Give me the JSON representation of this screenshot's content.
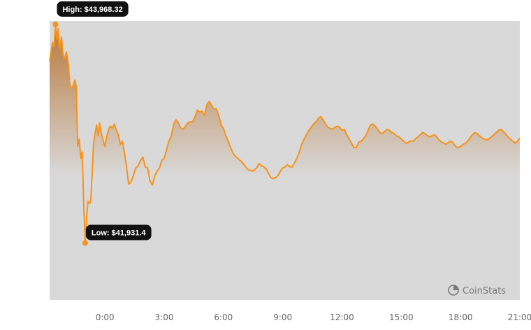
{
  "chart_data": {
    "type": "area",
    "title": "",
    "xlabel": "",
    "ylabel": "",
    "x_tick_labels": [
      "0:00",
      "3:00",
      "6:00",
      "9:00",
      "12:00",
      "15:00",
      "18:00",
      "21:00"
    ],
    "x_tick_hours": [
      0,
      3,
      6,
      9,
      12,
      15,
      18,
      21
    ],
    "x_range_hours": [
      -2.8,
      21.0
    ],
    "ylim": [
      41400,
      44000
    ],
    "series": [
      {
        "name": "",
        "points": [
          [
            -2.8,
            43630
          ],
          [
            -2.72,
            43720
          ],
          [
            -2.65,
            43800
          ],
          [
            -2.58,
            43760
          ],
          [
            -2.5,
            43968.32
          ],
          [
            -2.43,
            43830
          ],
          [
            -2.37,
            43930
          ],
          [
            -2.3,
            43740
          ],
          [
            -2.2,
            43850
          ],
          [
            -2.12,
            43690
          ],
          [
            -2.05,
            43640
          ],
          [
            -1.95,
            43710
          ],
          [
            -1.85,
            43600
          ],
          [
            -1.78,
            43420
          ],
          [
            -1.7,
            43370
          ],
          [
            -1.6,
            43400
          ],
          [
            -1.52,
            43450
          ],
          [
            -1.45,
            43390
          ],
          [
            -1.38,
            42830
          ],
          [
            -1.3,
            42900
          ],
          [
            -1.22,
            42720
          ],
          [
            -1.15,
            42780
          ],
          [
            -1.08,
            42330
          ],
          [
            -1.0,
            41931.4
          ],
          [
            -0.93,
            42150
          ],
          [
            -0.86,
            42320
          ],
          [
            -0.78,
            42300
          ],
          [
            -0.72,
            42310
          ],
          [
            -0.64,
            42600
          ],
          [
            -0.58,
            42850
          ],
          [
            -0.5,
            42950
          ],
          [
            -0.42,
            43030
          ],
          [
            -0.34,
            42930
          ],
          [
            -0.27,
            43050
          ],
          [
            -0.2,
            42970
          ],
          [
            -0.1,
            42890
          ],
          [
            0.0,
            42830
          ],
          [
            0.08,
            42910
          ],
          [
            0.18,
            42990
          ],
          [
            0.28,
            43020
          ],
          [
            0.38,
            43000
          ],
          [
            0.48,
            43040
          ],
          [
            0.58,
            42980
          ],
          [
            0.68,
            42940
          ],
          [
            0.78,
            42850
          ],
          [
            0.88,
            42880
          ],
          [
            0.98,
            42780
          ],
          [
            1.08,
            42660
          ],
          [
            1.2,
            42480
          ],
          [
            1.32,
            42500
          ],
          [
            1.44,
            42560
          ],
          [
            1.56,
            42630
          ],
          [
            1.68,
            42650
          ],
          [
            1.8,
            42700
          ],
          [
            1.92,
            42730
          ],
          [
            2.04,
            42640
          ],
          [
            2.16,
            42630
          ],
          [
            2.28,
            42510
          ],
          [
            2.4,
            42470
          ],
          [
            2.52,
            42550
          ],
          [
            2.64,
            42600
          ],
          [
            2.76,
            42630
          ],
          [
            2.88,
            42700
          ],
          [
            3.0,
            42720
          ],
          [
            3.12,
            42800
          ],
          [
            3.24,
            42880
          ],
          [
            3.36,
            42930
          ],
          [
            3.48,
            43040
          ],
          [
            3.6,
            43080
          ],
          [
            3.72,
            43050
          ],
          [
            3.84,
            43000
          ],
          [
            3.96,
            42990
          ],
          [
            4.08,
            43020
          ],
          [
            4.2,
            43050
          ],
          [
            4.32,
            43060
          ],
          [
            4.44,
            43060
          ],
          [
            4.56,
            43110
          ],
          [
            4.68,
            43170
          ],
          [
            4.8,
            43150
          ],
          [
            4.92,
            43160
          ],
          [
            5.04,
            43120
          ],
          [
            5.16,
            43220
          ],
          [
            5.28,
            43250
          ],
          [
            5.4,
            43210
          ],
          [
            5.52,
            43180
          ],
          [
            5.64,
            43180
          ],
          [
            5.76,
            43120
          ],
          [
            5.88,
            43030
          ],
          [
            6.0,
            43000
          ],
          [
            6.12,
            42930
          ],
          [
            6.24,
            42880
          ],
          [
            6.36,
            42820
          ],
          [
            6.48,
            42770
          ],
          [
            6.6,
            42740
          ],
          [
            6.72,
            42720
          ],
          [
            6.84,
            42700
          ],
          [
            6.96,
            42680
          ],
          [
            7.08,
            42650
          ],
          [
            7.2,
            42620
          ],
          [
            7.32,
            42610
          ],
          [
            7.44,
            42600
          ],
          [
            7.56,
            42610
          ],
          [
            7.68,
            42630
          ],
          [
            7.8,
            42670
          ],
          [
            7.92,
            42650
          ],
          [
            8.04,
            42640
          ],
          [
            8.16,
            42620
          ],
          [
            8.28,
            42580
          ],
          [
            8.4,
            42540
          ],
          [
            8.52,
            42530
          ],
          [
            8.64,
            42540
          ],
          [
            8.76,
            42560
          ],
          [
            8.88,
            42600
          ],
          [
            9.0,
            42630
          ],
          [
            9.12,
            42640
          ],
          [
            9.24,
            42660
          ],
          [
            9.36,
            42640
          ],
          [
            9.48,
            42640
          ],
          [
            9.6,
            42680
          ],
          [
            9.72,
            42720
          ],
          [
            9.84,
            42780
          ],
          [
            9.96,
            42850
          ],
          [
            10.08,
            42900
          ],
          [
            10.2,
            42940
          ],
          [
            10.32,
            42980
          ],
          [
            10.44,
            43010
          ],
          [
            10.56,
            43040
          ],
          [
            10.68,
            43060
          ],
          [
            10.8,
            43090
          ],
          [
            10.92,
            43110
          ],
          [
            11.04,
            43080
          ],
          [
            11.16,
            43040
          ],
          [
            11.28,
            43010
          ],
          [
            11.4,
            43000
          ],
          [
            11.52,
            42990
          ],
          [
            11.64,
            43010
          ],
          [
            11.76,
            43020
          ],
          [
            11.88,
            43010
          ],
          [
            12.0,
            42980
          ],
          [
            12.12,
            42990
          ],
          [
            12.24,
            42940
          ],
          [
            12.36,
            42900
          ],
          [
            12.48,
            42860
          ],
          [
            12.6,
            42820
          ],
          [
            12.72,
            42820
          ],
          [
            12.84,
            42870
          ],
          [
            12.96,
            42880
          ],
          [
            13.08,
            42900
          ],
          [
            13.2,
            42930
          ],
          [
            13.32,
            42980
          ],
          [
            13.44,
            43030
          ],
          [
            13.56,
            43040
          ],
          [
            13.68,
            43020
          ],
          [
            13.8,
            42990
          ],
          [
            13.92,
            42960
          ],
          [
            14.04,
            42950
          ],
          [
            14.16,
            42970
          ],
          [
            14.28,
            42990
          ],
          [
            14.4,
            42980
          ],
          [
            14.52,
            42960
          ],
          [
            14.64,
            42950
          ],
          [
            14.76,
            42930
          ],
          [
            14.88,
            42920
          ],
          [
            15.0,
            42900
          ],
          [
            15.12,
            42880
          ],
          [
            15.24,
            42860
          ],
          [
            15.36,
            42870
          ],
          [
            15.48,
            42880
          ],
          [
            15.6,
            42880
          ],
          [
            15.72,
            42900
          ],
          [
            15.84,
            42920
          ],
          [
            15.96,
            42940
          ],
          [
            16.08,
            42960
          ],
          [
            16.2,
            42950
          ],
          [
            16.32,
            42930
          ],
          [
            16.44,
            42920
          ],
          [
            16.56,
            42930
          ],
          [
            16.68,
            42940
          ],
          [
            16.8,
            42920
          ],
          [
            16.92,
            42890
          ],
          [
            17.04,
            42870
          ],
          [
            17.16,
            42860
          ],
          [
            17.28,
            42850
          ],
          [
            17.4,
            42870
          ],
          [
            17.52,
            42880
          ],
          [
            17.64,
            42860
          ],
          [
            17.76,
            42830
          ],
          [
            17.88,
            42820
          ],
          [
            18.0,
            42830
          ],
          [
            18.12,
            42850
          ],
          [
            18.24,
            42860
          ],
          [
            18.36,
            42880
          ],
          [
            18.48,
            42910
          ],
          [
            18.6,
            42940
          ],
          [
            18.72,
            42960
          ],
          [
            18.84,
            42950
          ],
          [
            18.96,
            42930
          ],
          [
            19.08,
            42910
          ],
          [
            19.2,
            42900
          ],
          [
            19.32,
            42890
          ],
          [
            19.44,
            42900
          ],
          [
            19.56,
            42920
          ],
          [
            19.68,
            42940
          ],
          [
            19.8,
            42960
          ],
          [
            19.92,
            42980
          ],
          [
            20.04,
            42990
          ],
          [
            20.16,
            42970
          ],
          [
            20.28,
            42950
          ],
          [
            20.4,
            42920
          ],
          [
            20.52,
            42900
          ],
          [
            20.64,
            42880
          ],
          [
            20.76,
            42860
          ],
          [
            20.88,
            42880
          ],
          [
            21.0,
            42910
          ]
        ]
      }
    ],
    "annotations": {
      "high": {
        "label": "High: $43,968.32",
        "value": 43968.32,
        "hour": -2.5
      },
      "low": {
        "label": "Low: $41,931.4",
        "value": 41931.4,
        "hour": -1.0
      }
    },
    "grid": false,
    "legend": "none"
  },
  "colors": {
    "line": "#f7931a",
    "area_top": "#b8783a",
    "area_bottom": "#d9d9d9",
    "tooltip_bg": "#111111",
    "tick_text": "#666666"
  },
  "brand": {
    "name": "CoinStats",
    "icon": "coinstats-logo-icon"
  }
}
